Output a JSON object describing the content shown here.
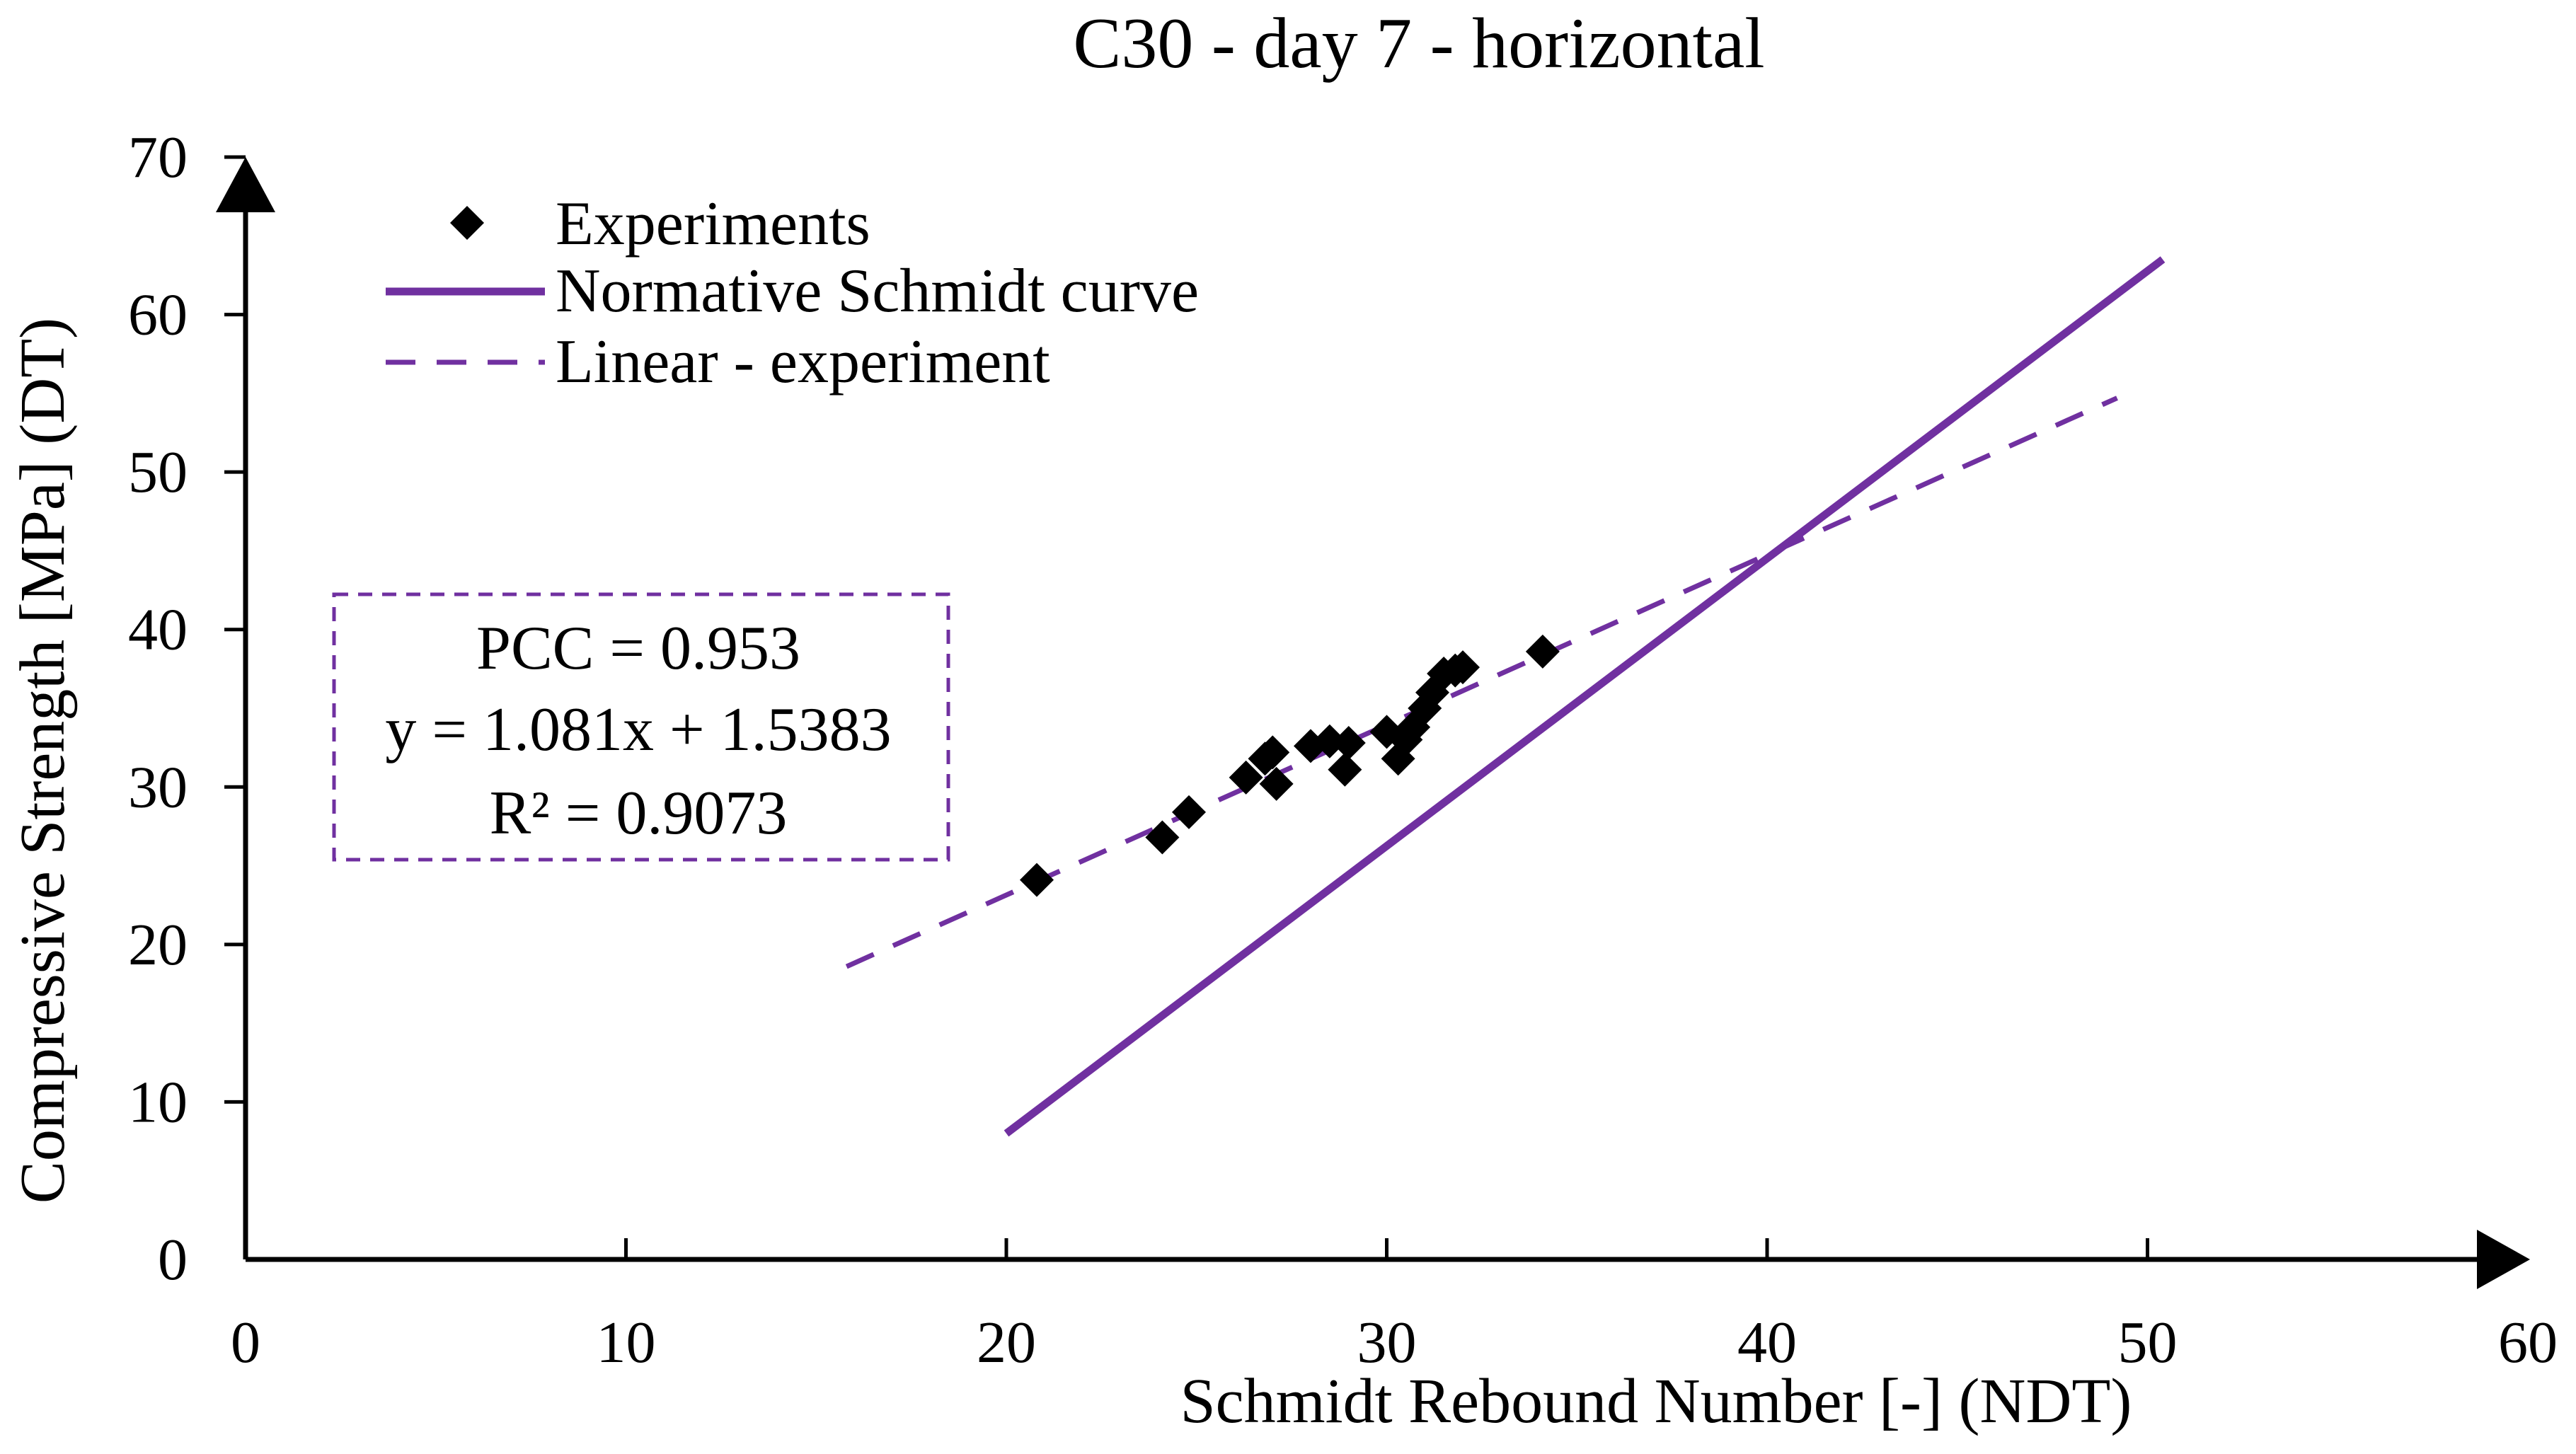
{
  "chart_data": {
    "type": "scatter",
    "title": "C30 - day 7 - horizontal",
    "xlabel": "Schmidt Rebound Number [-] (NDT)",
    "ylabel": "Compressive Strength [MPa] (DT)",
    "xlim": [
      0,
      60
    ],
    "ylim": [
      0,
      70
    ],
    "xticks": [
      0,
      10,
      20,
      30,
      40,
      50,
      60
    ],
    "yticks": [
      0,
      10,
      20,
      30,
      40,
      50,
      60,
      70
    ],
    "grid": false,
    "legend_position": "top-left",
    "colors": {
      "marker": "#000000",
      "normative_line": "#7030A0",
      "linear_line": "#7030A0",
      "stats_border": "#7030A0",
      "axis": "#000000"
    },
    "series": [
      {
        "name": "Experiments",
        "kind": "scatter",
        "marker": "diamond",
        "points": [
          [
            20.8,
            24.1
          ],
          [
            24.1,
            26.8
          ],
          [
            24.8,
            28.4
          ],
          [
            26.3,
            30.6
          ],
          [
            26.8,
            31.8
          ],
          [
            27.0,
            32.2
          ],
          [
            27.1,
            30.2
          ],
          [
            28.0,
            32.6
          ],
          [
            28.5,
            32.9
          ],
          [
            28.9,
            31.1
          ],
          [
            29.0,
            32.8
          ],
          [
            30.0,
            33.5
          ],
          [
            30.3,
            31.8
          ],
          [
            30.5,
            33.0
          ],
          [
            30.7,
            33.8
          ],
          [
            31.0,
            35.0
          ],
          [
            31.2,
            36.0
          ],
          [
            31.5,
            37.2
          ],
          [
            31.8,
            37.4
          ],
          [
            32.0,
            37.6
          ],
          [
            34.1,
            38.6
          ]
        ]
      },
      {
        "name": "Normative Schmidt curve",
        "kind": "line",
        "style": "solid",
        "points": [
          [
            20.0,
            8.0
          ],
          [
            50.4,
            63.5
          ]
        ]
      },
      {
        "name": "Linear - experiment",
        "kind": "line",
        "style": "dashed",
        "points": [
          [
            15.8,
            18.6
          ],
          [
            49.2,
            54.7
          ]
        ]
      }
    ],
    "stats": {
      "pcc": "PCC = 0.953",
      "equation": "y = 1.081x + 1.5383",
      "r_squared": "R² = 0.9073"
    }
  }
}
